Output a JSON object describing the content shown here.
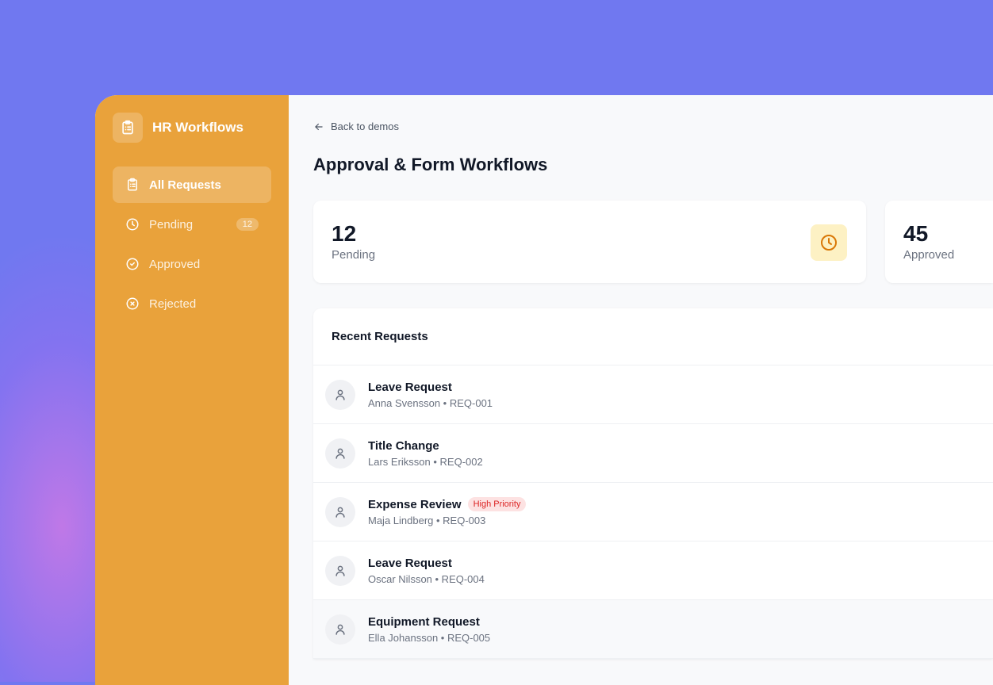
{
  "sidebar": {
    "brand": "HR Workflows",
    "items": [
      {
        "label": "All Requests",
        "icon": "clipboard-icon",
        "active": true
      },
      {
        "label": "Pending",
        "icon": "clock-icon",
        "badge": "12"
      },
      {
        "label": "Approved",
        "icon": "check-circle-icon"
      },
      {
        "label": "Rejected",
        "icon": "x-circle-icon"
      }
    ]
  },
  "header": {
    "back": "Back to demos",
    "title": "Approval & Form Workflows"
  },
  "stats": [
    {
      "value": "12",
      "label": "Pending"
    },
    {
      "value": "45",
      "label": "Approved"
    }
  ],
  "recent": {
    "title": "Recent Requests",
    "rows": [
      {
        "title": "Leave Request",
        "meta": "Anna Svensson • REQ-001"
      },
      {
        "title": "Title Change",
        "meta": "Lars Eriksson • REQ-002"
      },
      {
        "title": "Expense Review",
        "meta": "Maja Lindberg • REQ-003",
        "tag": "High Priority"
      },
      {
        "title": "Leave Request",
        "meta": "Oscar Nilsson • REQ-004"
      },
      {
        "title": "Equipment Request",
        "meta": "Ella Johansson • REQ-005"
      }
    ]
  },
  "colors": {
    "sidebar": "#e9a23b",
    "background": "#7078f0",
    "priority": "#dc2626"
  }
}
